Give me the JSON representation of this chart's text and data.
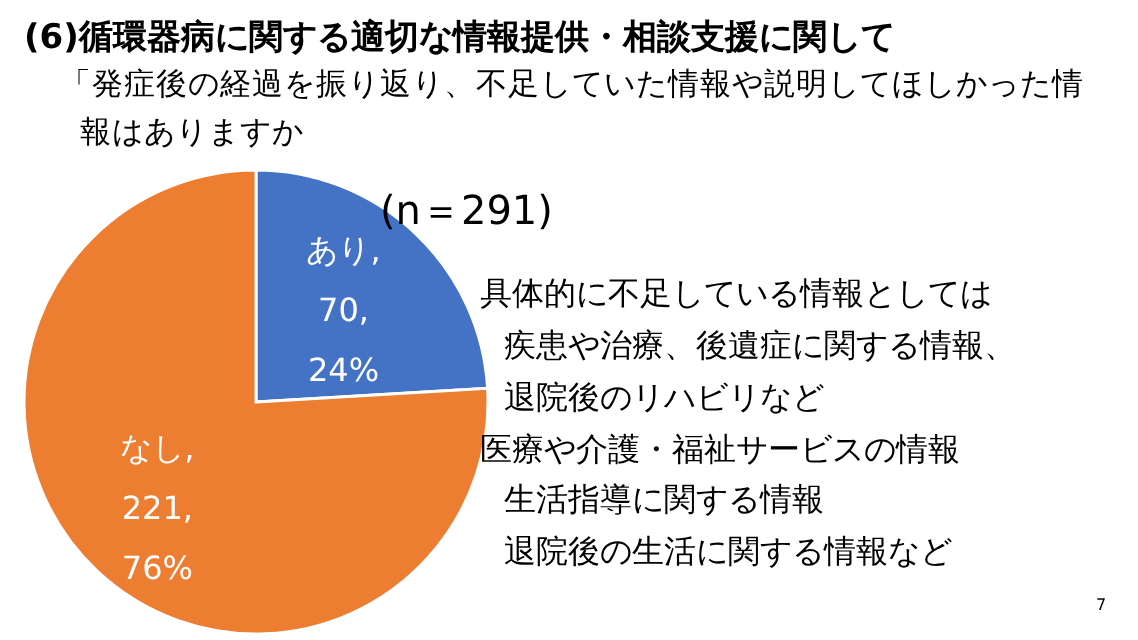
{
  "chart_data": {
    "type": "pie",
    "title": "(6)循環器病に関する適切な情報提供・相談支援に関して",
    "subtitle": "「発症後の経過を振り返り、不足していた情報や説明してほしかった情報はありますか",
    "categories": [
      "あり",
      "なし"
    ],
    "values": [
      70,
      221
    ],
    "colors": [
      "#4472c4",
      "#ed7d31"
    ],
    "value_labels": [
      ",\n70,\n24%",
      ",\n221,\n76%"
    ],
    "annotations": [
      "(n＝291)",
      "具体的に不足している情報としては",
      "疾患や治療、後遺症に関する情報、",
      "退院後のリハビリなど",
      "医療や介護・福祉サービスの情報",
      "生活指導に関する情報",
      "退院後の生活に関する情報など",
      "7"
    ]
  }
}
